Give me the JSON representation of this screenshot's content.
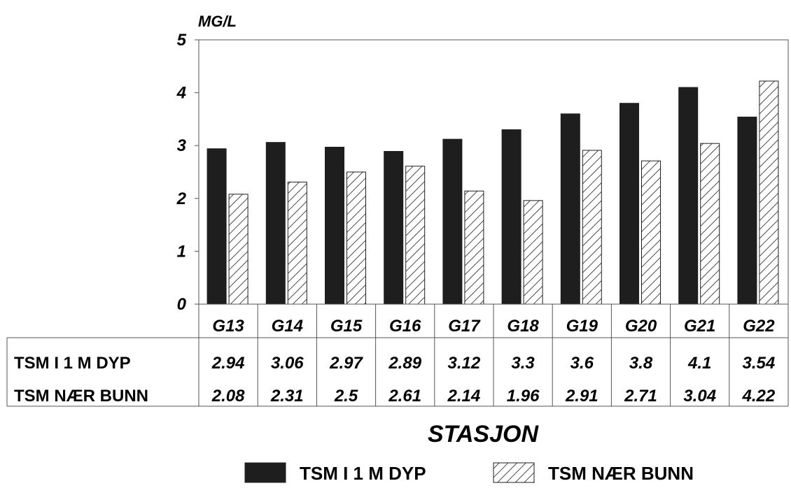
{
  "chart_data": {
    "type": "bar",
    "title": "",
    "ylabel": "MG/L",
    "xlabel": "STASJON",
    "ylim": [
      0,
      5
    ],
    "yticks": [
      0,
      1,
      2,
      3,
      4,
      5
    ],
    "categories": [
      "G13",
      "G14",
      "G15",
      "G16",
      "G17",
      "G18",
      "G19",
      "G20",
      "G21",
      "G22"
    ],
    "series": [
      {
        "name": "TSM I 1 M DYP",
        "pattern": "solid",
        "color": "#1e1e1e",
        "values": [
          2.94,
          3.06,
          2.97,
          2.89,
          3.12,
          3.3,
          3.6,
          3.8,
          4.1,
          3.54
        ],
        "labels": [
          "2.94",
          "3.06",
          "2.97",
          "2.89",
          "3.12",
          "3.3",
          "3.6",
          "3.8",
          "4.1",
          "3.54"
        ]
      },
      {
        "name": "TSM NÆR BUNN",
        "pattern": "hatched",
        "color": "#1e1e1e",
        "values": [
          2.08,
          2.31,
          2.5,
          2.61,
          2.14,
          1.96,
          2.91,
          2.71,
          3.04,
          4.22
        ],
        "labels": [
          "2.08",
          "2.31",
          "2.5",
          "2.61",
          "2.14",
          "1.96",
          "2.91",
          "2.71",
          "3.04",
          "4.22"
        ]
      }
    ],
    "legend_position": "bottom-right",
    "grid": false,
    "data_table": true
  }
}
